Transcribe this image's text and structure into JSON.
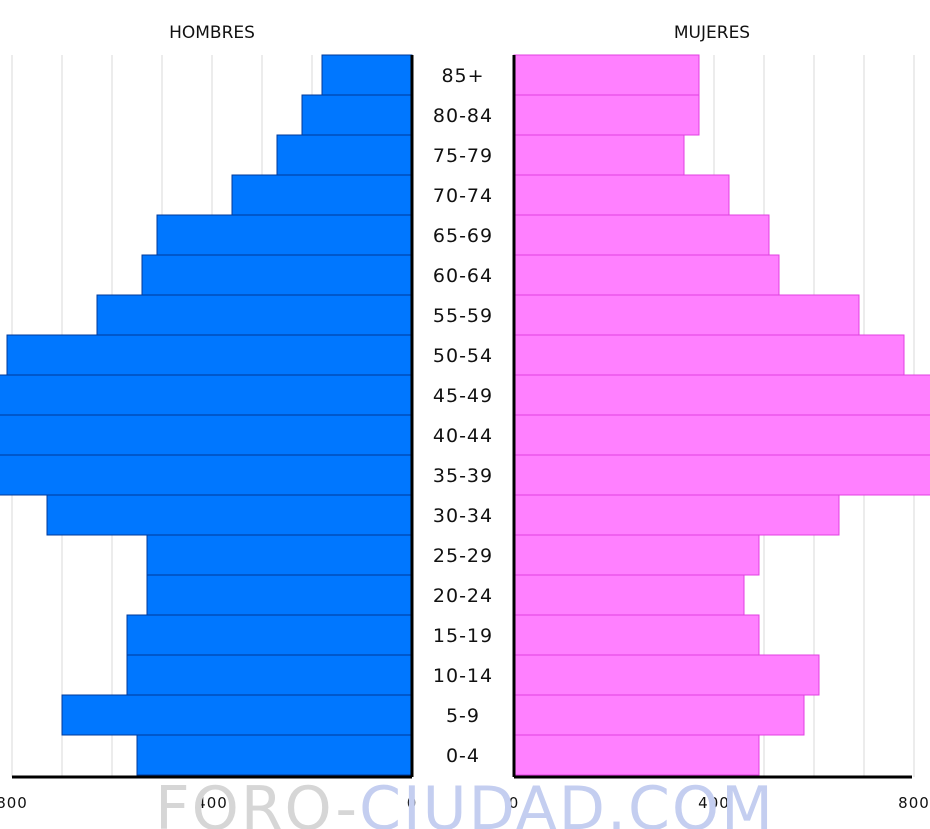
{
  "watermark": {
    "part1": "FORO-",
    "part2": "CIUDAD.COM",
    "color1": "#d6d6d6",
    "color2": "#c4cef0"
  },
  "chart_data": {
    "type": "bar",
    "orientation": "horizontal",
    "layout": "population-pyramid",
    "categories": [
      "85+",
      "80-84",
      "75-79",
      "70-74",
      "65-69",
      "60-64",
      "55-59",
      "50-54",
      "45-49",
      "40-44",
      "35-39",
      "30-34",
      "25-29",
      "20-24",
      "15-19",
      "10-14",
      "5-9",
      "0-4"
    ],
    "series": [
      {
        "name": "HOMBRES",
        "side": "left",
        "color": "#0077ff",
        "values": [
          180,
          220,
          270,
          360,
          510,
          540,
          630,
          810,
          890,
          990,
          970,
          730,
          530,
          530,
          570,
          570,
          700,
          550
        ]
      },
      {
        "name": "MUJERES",
        "side": "right",
        "color": "#ff80ff",
        "values": [
          370,
          370,
          340,
          430,
          510,
          530,
          690,
          780,
          840,
          980,
          860,
          650,
          490,
          460,
          490,
          610,
          580,
          490
        ]
      }
    ],
    "xlim": [
      0,
      1000
    ],
    "ticks": {
      "left": [
        "800",
        "400",
        "0"
      ],
      "right": [
        "0",
        "400",
        "800"
      ]
    },
    "tick_values": [
      800,
      400,
      0
    ],
    "grid": true,
    "grid_color": "#d9d9d9",
    "bar_outline": {
      "left": "#003a99",
      "right": "#e040e0"
    }
  }
}
